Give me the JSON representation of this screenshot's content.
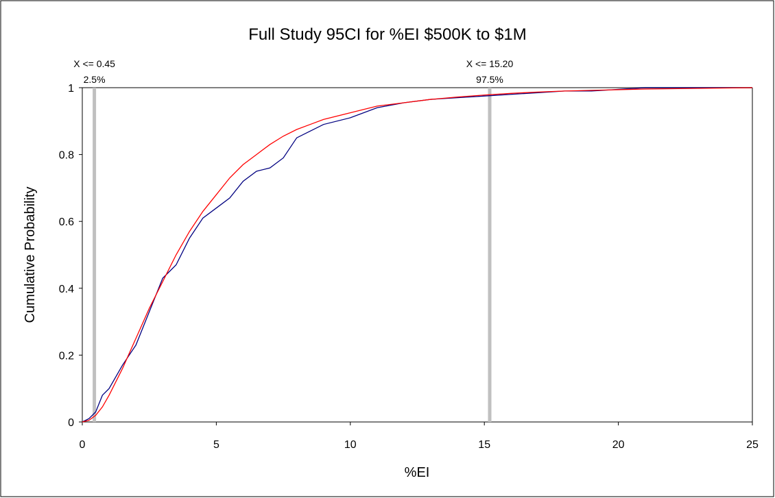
{
  "chart_data": {
    "type": "line",
    "title": "Full Study 95CI for %EI  $500K to $1M",
    "x_label": "%EI",
    "y_label": "Cumulative Probability",
    "x": [
      0,
      0.25,
      0.5,
      0.75,
      1,
      1.5,
      2,
      2.5,
      3,
      3.5,
      4,
      4.5,
      5,
      5.5,
      6,
      6.5,
      7,
      7.5,
      8,
      8.5,
      9,
      10,
      11,
      12,
      13,
      14,
      15,
      16,
      17,
      18,
      19,
      20,
      21,
      22,
      23,
      24,
      25
    ],
    "series": [
      {
        "color": "#000080",
        "values": [
          0,
          0.01,
          0.03,
          0.08,
          0.1,
          0.17,
          0.23,
          0.33,
          0.43,
          0.47,
          0.55,
          0.61,
          0.64,
          0.67,
          0.72,
          0.75,
          0.76,
          0.79,
          0.85,
          0.87,
          0.89,
          0.91,
          0.94,
          0.955,
          0.965,
          0.97,
          0.975,
          0.98,
          0.985,
          0.99,
          0.99,
          0.995,
          1,
          1,
          1,
          1,
          1
        ]
      },
      {
        "color": "#ff0000",
        "values": [
          0,
          0.005,
          0.02,
          0.045,
          0.08,
          0.16,
          0.25,
          0.34,
          0.42,
          0.5,
          0.57,
          0.63,
          0.68,
          0.73,
          0.77,
          0.8,
          0.83,
          0.855,
          0.875,
          0.89,
          0.905,
          0.925,
          0.945,
          0.955,
          0.965,
          0.972,
          0.978,
          0.983,
          0.987,
          0.99,
          0.992,
          0.994,
          0.996,
          0.997,
          0.998,
          0.999,
          1
        ]
      }
    ],
    "markers": [
      {
        "x": 0.45,
        "label": "X <= 0.45",
        "probability_label": "2.5%"
      },
      {
        "x": 15.2,
        "label": "X <= 15.20",
        "probability_label": "97.5%"
      }
    ],
    "marker_color": "#c0c0c0",
    "xlim": [
      0,
      25
    ],
    "ylim": [
      0,
      1
    ],
    "xticks": [
      0,
      5,
      10,
      15,
      20,
      25
    ],
    "yticks": [
      0,
      0.2,
      0.4,
      0.6,
      0.8,
      1
    ]
  }
}
